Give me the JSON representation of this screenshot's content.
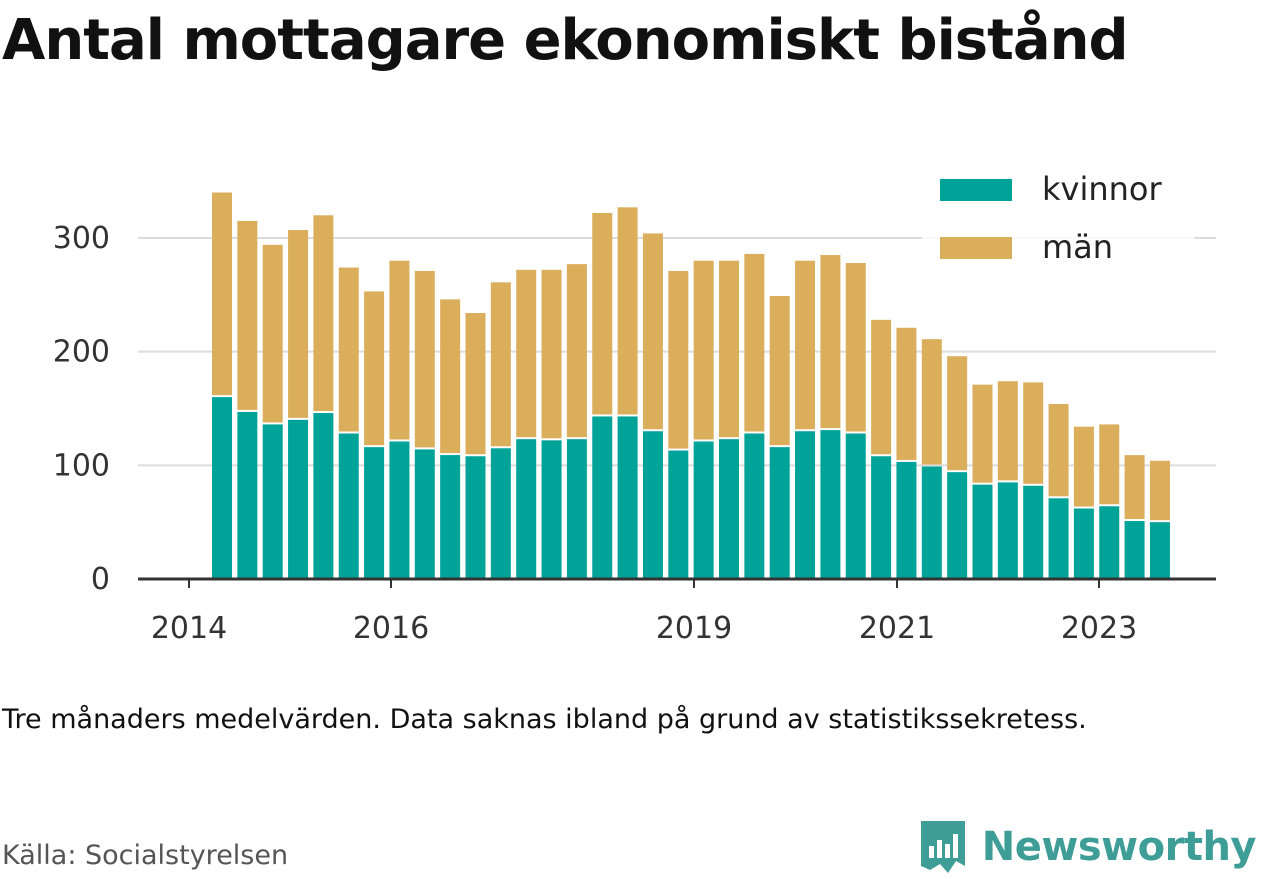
{
  "title": "Antal mottagare ekonomiskt bistånd",
  "note": "Tre månaders medelvärden. Data saknas ibland på grund av statistikssekretess.",
  "source": "Källa: Socialstyrelsen",
  "brand": "Newsworthy",
  "colors": {
    "kvinnor": "#00a398",
    "man": "#dbae5c",
    "brand": "#3e9e97"
  },
  "chart_data": {
    "type": "bar",
    "stacked": true,
    "xticks": [
      "2014",
      "2016",
      "2019",
      "2021",
      "2023"
    ],
    "yticks": [
      "0",
      "100",
      "200",
      "300"
    ],
    "ylim": [
      0,
      340
    ],
    "grid": true,
    "legend": "top-right",
    "categories": [
      "2014 Q2",
      "2014 Q3",
      "2014 Q4",
      "2015 Q1",
      "2015 Q2",
      "2015 Q3",
      "2015 Q4",
      "2016 Q1",
      "2016 Q2",
      "2016 Q3",
      "2016 Q4",
      "2017 Q1",
      "2017 Q2",
      "2017 Q3",
      "2017 Q4",
      "2018 Q1",
      "2018 Q2",
      "2018 Q3",
      "2018 Q4",
      "2019 Q1",
      "2019 Q2",
      "2019 Q3",
      "2019 Q4",
      "2020 Q1",
      "2020 Q2",
      "2020 Q3",
      "2020 Q4",
      "2021 Q1",
      "2021 Q2",
      "2021 Q3",
      "2021 Q4",
      "2022 Q1",
      "2022 Q2",
      "2022 Q3",
      "2022 Q4",
      "2023 Q1",
      "2023 Q2",
      "2023 Q3"
    ],
    "series": [
      {
        "name": "kvinnor",
        "values": [
          160,
          147,
          136,
          140,
          146,
          128,
          116,
          121,
          114,
          109,
          108,
          115,
          123,
          122,
          123,
          143,
          143,
          130,
          113,
          121,
          123,
          128,
          116,
          130,
          131,
          128,
          108,
          103,
          99,
          94,
          83,
          85,
          82,
          71,
          62,
          64,
          51,
          50
        ]
      },
      {
        "name": "män",
        "values": [
          180,
          168,
          158,
          167,
          174,
          146,
          137,
          159,
          157,
          137,
          126,
          146,
          149,
          150,
          154,
          179,
          184,
          174,
          158,
          159,
          157,
          158,
          133,
          150,
          154,
          150,
          120,
          118,
          112,
          102,
          88,
          89,
          91,
          83,
          72,
          72,
          58,
          54
        ]
      }
    ]
  }
}
